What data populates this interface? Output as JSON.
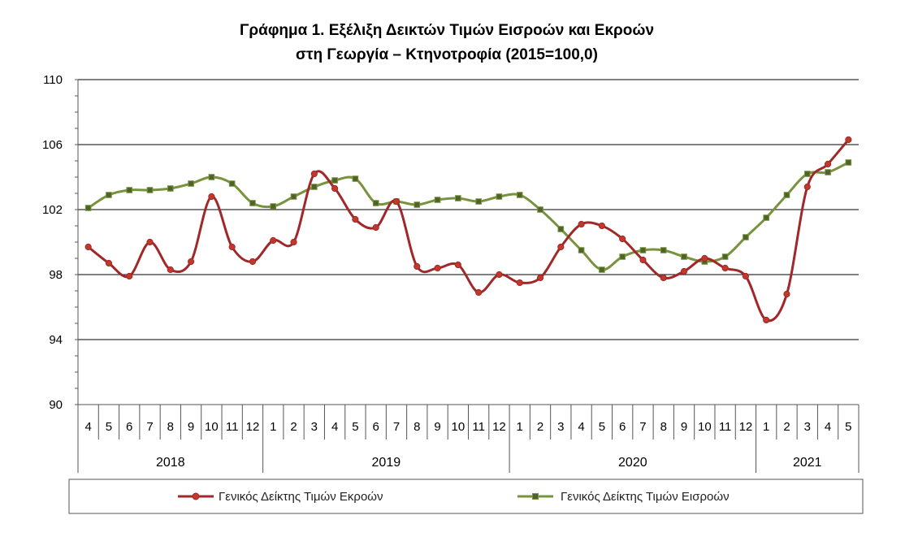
{
  "chart_data": {
    "type": "line",
    "title": "Γράφημα 1. Εξέλιξη Δεικτών Τιμών Εισροών και Εκροών",
    "subtitle": "στη Γεωργία – Κτηνοτροφία (2015=100,0)",
    "ylim": [
      90,
      110
    ],
    "yticks": [
      90,
      94,
      98,
      102,
      106,
      110
    ],
    "months": [
      "4",
      "5",
      "6",
      "7",
      "8",
      "9",
      "10",
      "11",
      "12",
      "1",
      "2",
      "3",
      "4",
      "5",
      "6",
      "7",
      "8",
      "9",
      "10",
      "11",
      "12",
      "1",
      "2",
      "3",
      "4",
      "5",
      "6",
      "7",
      "8",
      "9",
      "10",
      "11",
      "12",
      "1",
      "2",
      "3",
      "4",
      "5"
    ],
    "years": [
      {
        "label": "2018",
        "count": 9
      },
      {
        "label": "2019",
        "count": 12
      },
      {
        "label": "2020",
        "count": 12
      },
      {
        "label": "2021",
        "count": 5
      }
    ],
    "grid": "horizontal",
    "legend_position": "bottom",
    "series": [
      {
        "name": "Γενικός Δείκτης Τιμών Εκροών",
        "color": "#a0282a",
        "marker": "circle",
        "values": [
          99.7,
          98.7,
          97.9,
          100.0,
          98.3,
          98.8,
          102.8,
          99.7,
          98.8,
          100.1,
          100.0,
          104.2,
          103.3,
          101.4,
          100.9,
          102.5,
          98.5,
          98.4,
          98.6,
          96.9,
          98.0,
          97.5,
          97.8,
          99.7,
          101.1,
          101.0,
          100.2,
          98.9,
          97.8,
          98.2,
          99.0,
          98.4,
          97.9,
          95.2,
          96.8,
          103.4,
          104.8,
          106.3
        ]
      },
      {
        "name": "Γενικός Δείκτης Τιμών Εισροών",
        "color": "#77933c",
        "marker": "square",
        "values": [
          102.1,
          102.9,
          103.2,
          103.2,
          103.3,
          103.6,
          104.0,
          103.6,
          102.4,
          102.2,
          102.8,
          103.4,
          103.8,
          103.9,
          102.4,
          102.5,
          102.3,
          102.6,
          102.7,
          102.5,
          102.8,
          102.9,
          102.0,
          100.8,
          99.5,
          98.3,
          99.1,
          99.5,
          99.5,
          99.1,
          98.8,
          99.1,
          100.3,
          101.5,
          102.9,
          104.2,
          104.3,
          104.9
        ]
      }
    ]
  }
}
